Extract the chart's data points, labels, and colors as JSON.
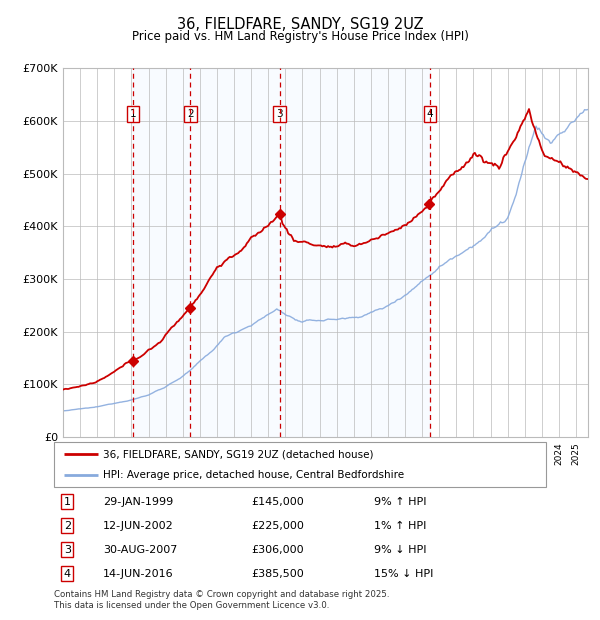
{
  "title": "36, FIELDFARE, SANDY, SG19 2UZ",
  "subtitle": "Price paid vs. HM Land Registry's House Price Index (HPI)",
  "ylim": [
    0,
    700000
  ],
  "yticks": [
    0,
    100000,
    200000,
    300000,
    400000,
    500000,
    600000,
    700000
  ],
  "ytick_labels": [
    "£0",
    "£100K",
    "£200K",
    "£300K",
    "£400K",
    "£500K",
    "£600K",
    "£700K"
  ],
  "xlim_start": 1995.0,
  "xlim_end": 2025.7,
  "sale_dates": [
    1999.08,
    2002.45,
    2007.67,
    2016.45
  ],
  "sale_prices": [
    145000,
    225000,
    306000,
    385500
  ],
  "sale_labels": [
    "1",
    "2",
    "3",
    "4"
  ],
  "red_line_color": "#cc0000",
  "blue_line_color": "#88aadd",
  "shade_color": "#ddeeff",
  "dashed_color": "#cc0000",
  "marker_color": "#cc0000",
  "background_color": "#ffffff",
  "grid_color": "#bbbbbb",
  "legend_entries": [
    "36, FIELDFARE, SANDY, SG19 2UZ (detached house)",
    "HPI: Average price, detached house, Central Bedfordshire"
  ],
  "table_entries": [
    {
      "label": "1",
      "date": "29-JAN-1999",
      "price": "£145,000",
      "hpi": "9% ↑ HPI"
    },
    {
      "label": "2",
      "date": "12-JUN-2002",
      "price": "£225,000",
      "hpi": "1% ↑ HPI"
    },
    {
      "label": "3",
      "date": "30-AUG-2007",
      "price": "£306,000",
      "hpi": "9% ↓ HPI"
    },
    {
      "label": "4",
      "date": "14-JUN-2016",
      "price": "£385,500",
      "hpi": "15% ↓ HPI"
    }
  ],
  "footnote": "Contains HM Land Registry data © Crown copyright and database right 2025.\nThis data is licensed under the Open Government Licence v3.0."
}
